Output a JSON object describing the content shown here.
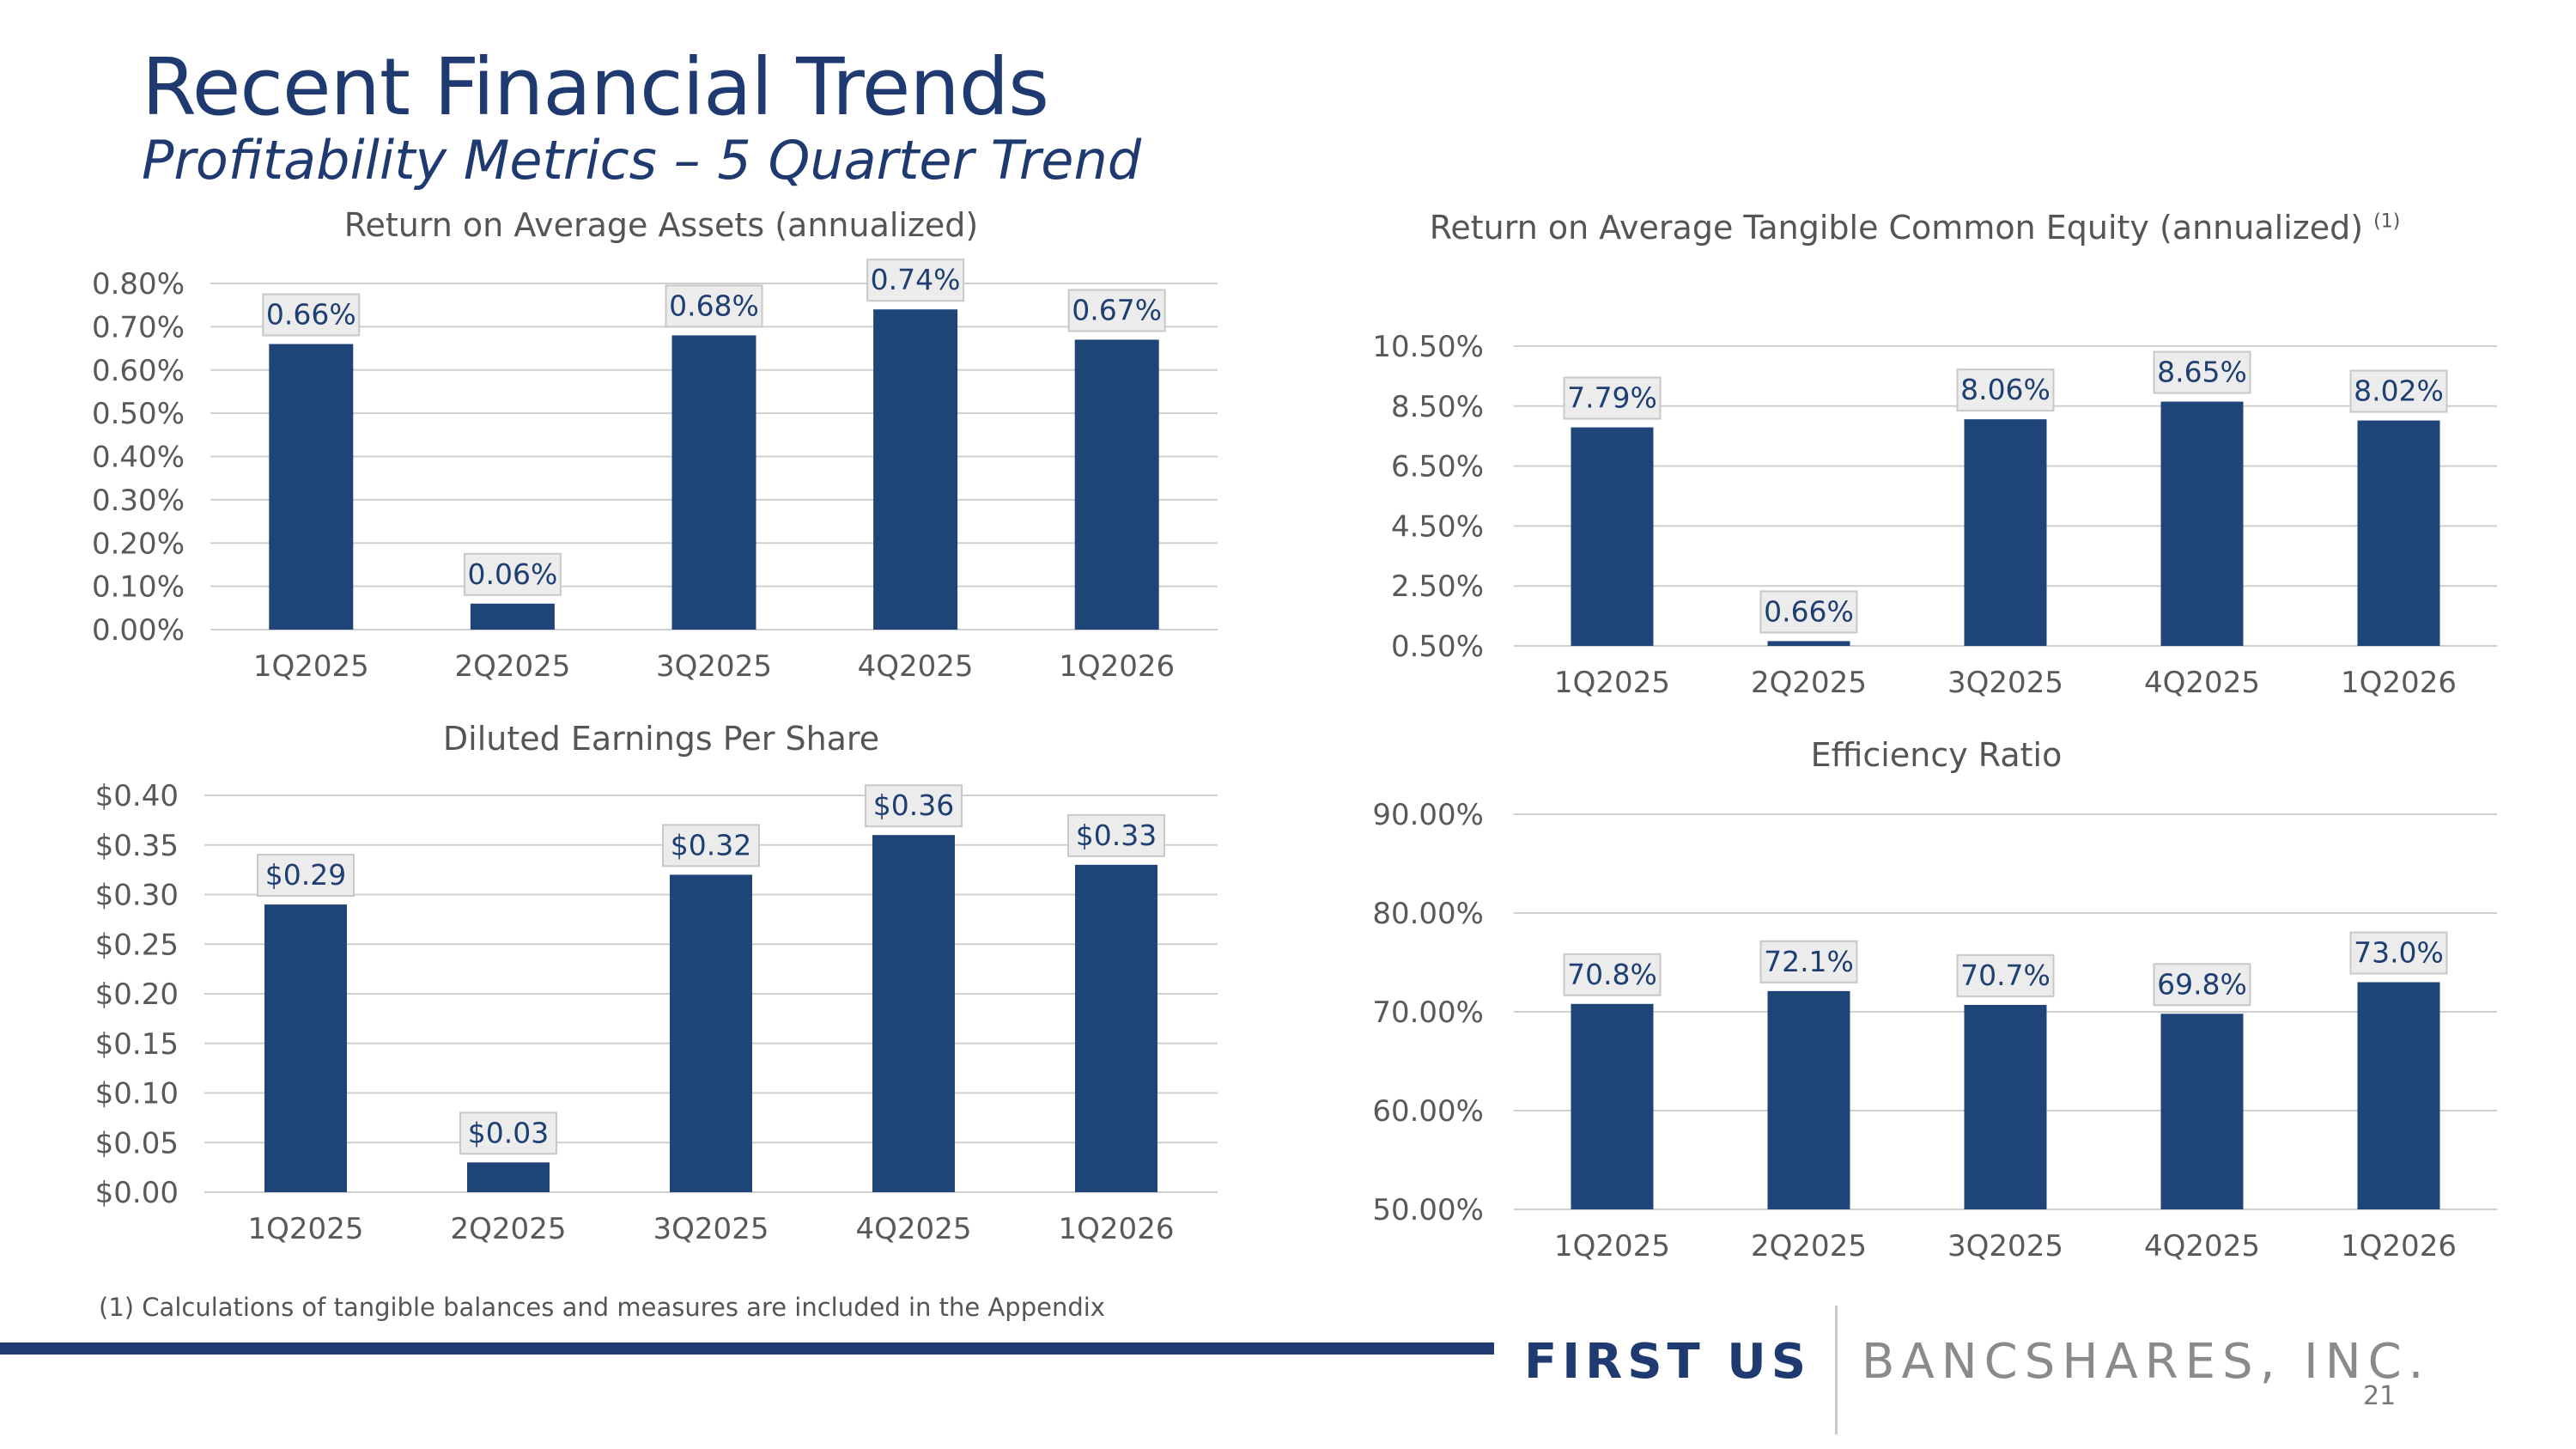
{
  "header": {
    "title": "Recent Financial Trends",
    "subtitle": "Profitability Metrics – 5 Quarter Trend"
  },
  "chart_data": [
    {
      "type": "bar",
      "title": "Return on Average Assets (annualized)",
      "categories": [
        "1Q2025",
        "2Q2025",
        "3Q2025",
        "4Q2025",
        "1Q2026"
      ],
      "values": [
        0.66,
        0.06,
        0.68,
        0.74,
        0.67
      ],
      "data_labels": [
        "0.66%",
        "0.06%",
        "0.68%",
        "0.74%",
        "0.67%"
      ],
      "ylim": [
        0,
        0.8
      ],
      "ticks": [
        0,
        0.1,
        0.2,
        0.3,
        0.4,
        0.5,
        0.6,
        0.7,
        0.8
      ],
      "tick_labels": [
        "0.00%",
        "0.10%",
        "0.20%",
        "0.30%",
        "0.40%",
        "0.50%",
        "0.60%",
        "0.70%",
        "0.80%"
      ],
      "grid": true,
      "color": "#1f4478"
    },
    {
      "type": "bar",
      "title": "Return on Average Tangible Common Equity (annualized)",
      "title_note": "(1)",
      "categories": [
        "1Q2025",
        "2Q2025",
        "3Q2025",
        "4Q2025",
        "1Q2026"
      ],
      "values": [
        7.79,
        0.66,
        8.06,
        8.65,
        8.02
      ],
      "data_labels": [
        "7.79%",
        "0.66%",
        "8.06%",
        "8.65%",
        "8.02%"
      ],
      "ylim": [
        0.5,
        10.5
      ],
      "ticks": [
        0.5,
        2.5,
        4.5,
        6.5,
        8.5,
        10.5
      ],
      "tick_labels": [
        "0.50%",
        "2.50%",
        "4.50%",
        "6.50%",
        "8.50%",
        "10.50%"
      ],
      "grid": true,
      "color": "#1f4478"
    },
    {
      "type": "bar",
      "title": "Diluted Earnings Per Share",
      "categories": [
        "1Q2025",
        "2Q2025",
        "3Q2025",
        "4Q2025",
        "1Q2026"
      ],
      "values": [
        0.29,
        0.03,
        0.32,
        0.36,
        0.33
      ],
      "data_labels": [
        "$0.29",
        "$0.03",
        "$0.32",
        "$0.36",
        "$0.33"
      ],
      "ylim": [
        0,
        0.4
      ],
      "ticks": [
        0,
        0.05,
        0.1,
        0.15,
        0.2,
        0.25,
        0.3,
        0.35,
        0.4
      ],
      "tick_labels": [
        "$0.00",
        "$0.05",
        "$0.10",
        "$0.15",
        "$0.20",
        "$0.25",
        "$0.30",
        "$0.35",
        "$0.40"
      ],
      "grid": true,
      "color": "#1f4478"
    },
    {
      "type": "bar",
      "title": "Efficiency Ratio",
      "categories": [
        "1Q2025",
        "2Q2025",
        "3Q2025",
        "4Q2025",
        "1Q2026"
      ],
      "values": [
        70.8,
        72.1,
        70.7,
        69.8,
        73.0
      ],
      "data_labels": [
        "70.8%",
        "72.1%",
        "70.7%",
        "69.8%",
        "73.0%"
      ],
      "ylim": [
        50,
        90
      ],
      "ticks": [
        50,
        60,
        70,
        80,
        90
      ],
      "tick_labels": [
        "50.00%",
        "60.00%",
        "70.00%",
        "80.00%",
        "90.00%"
      ],
      "grid": true,
      "color": "#1f4478"
    }
  ],
  "footer": {
    "footnote": "(1) Calculations of tangible balances and measures are included in the Appendix",
    "logo_first": "FIRST US",
    "logo_rest": "BANCSHARES, INC.",
    "page_number": "21"
  }
}
